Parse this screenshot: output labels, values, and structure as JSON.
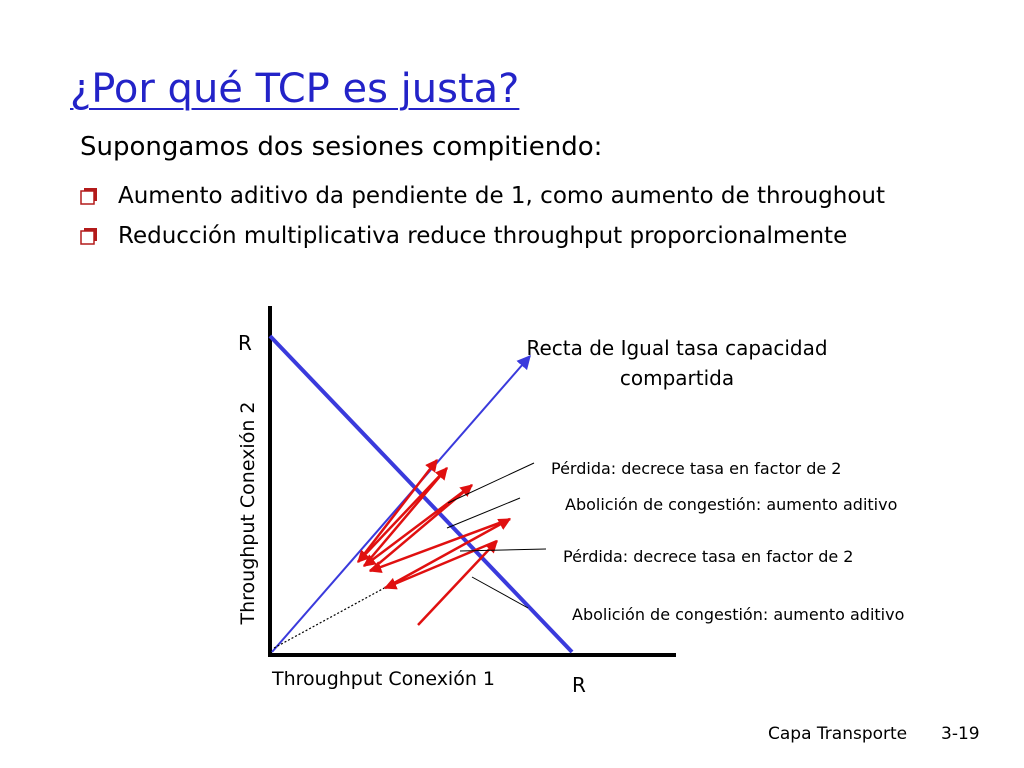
{
  "slide": {
    "title": "¿Por qué TCP es justa?",
    "subtitle": "Supongamos dos sesiones compitiendo:",
    "bullets": [
      "Aumento aditivo da pendiente de 1, como aumento de throughout",
      "Reducción multiplicativa reduce throughput proporcionalmente"
    ],
    "bullet_icon": "hollow-square-bullet-icon"
  },
  "diagram": {
    "y_axis_label": "Throughput Conexión 2",
    "x_axis_label": "Throughput Conexión 1",
    "y_max_label": "R",
    "x_max_label": "R",
    "equal_share_label": [
      "Recta de Igual tasa capacidad",
      "compartida"
    ],
    "annotations": [
      "Pérdida: decrece tasa en factor de 2",
      "Abolición de congestión: aumento aditivo",
      "Pérdida: decrece tasa en factor de 2",
      "Abolición de congestión: aumento aditivo"
    ],
    "colors": {
      "capacity_line": "#3a3adc",
      "equal_share_line": "#3a3adc",
      "trajectory": "#e01010",
      "axes": "#000000"
    }
  },
  "footer": {
    "section": "Capa Transporte",
    "page": "3-19"
  }
}
